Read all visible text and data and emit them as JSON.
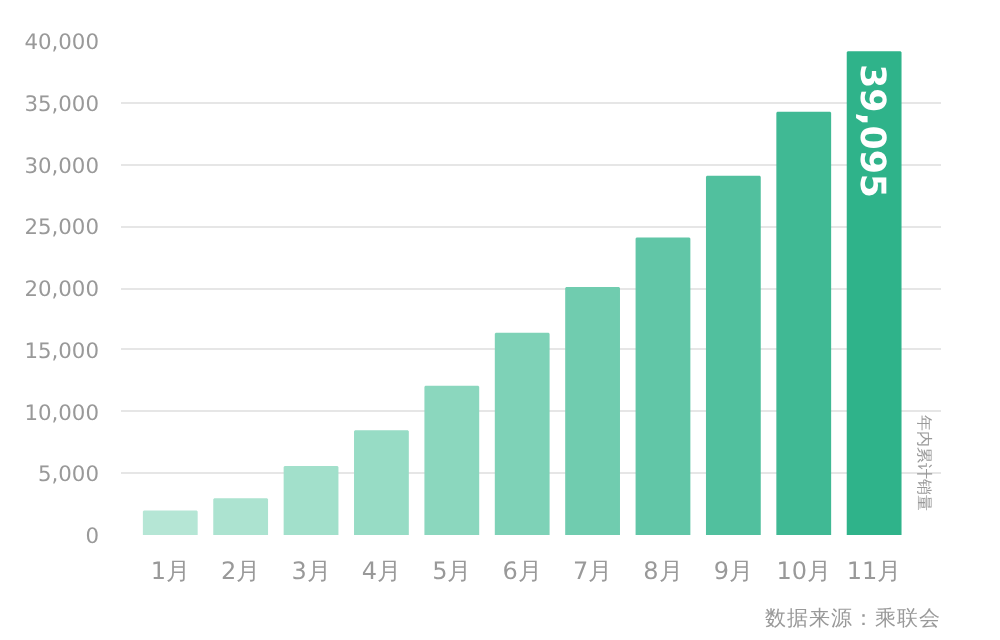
{
  "chart_data": {
    "type": "bar",
    "categories": [
      "1月",
      "2月",
      "3月",
      "4月",
      "5月",
      "6月",
      "7月",
      "8月",
      "9月",
      "10月",
      "11月"
    ],
    "values": [
      1900,
      2900,
      5500,
      8400,
      12000,
      16300,
      20000,
      24000,
      29000,
      34200,
      39095
    ],
    "colors": [
      "#b5e6d5",
      "#ace3d0",
      "#a2e0cb",
      "#97dcc5",
      "#8bd7be",
      "#7ed2b7",
      "#70ccaf",
      "#61c6a7",
      "#51c09e",
      "#40b994",
      "#2fb38a"
    ],
    "value_labels": [
      null,
      null,
      null,
      null,
      null,
      null,
      null,
      null,
      null,
      null,
      "39,095"
    ],
    "ylim": [
      0,
      40000
    ],
    "yticks": [
      {
        "value": 0,
        "label": "0"
      },
      {
        "value": 5000,
        "label": "5,000"
      },
      {
        "value": 10000,
        "label": "10,000"
      },
      {
        "value": 15000,
        "label": "15,000"
      },
      {
        "value": 20000,
        "label": "20,000"
      },
      {
        "value": 25000,
        "label": "25,000"
      },
      {
        "value": 30000,
        "label": "30,000"
      },
      {
        "value": 35000,
        "label": "35,000"
      },
      {
        "value": 40000,
        "label": "40,000"
      }
    ],
    "grid": "y",
    "ylabel": "年内累计销量",
    "annotations": [
      "数据来源：乘联会"
    ]
  }
}
